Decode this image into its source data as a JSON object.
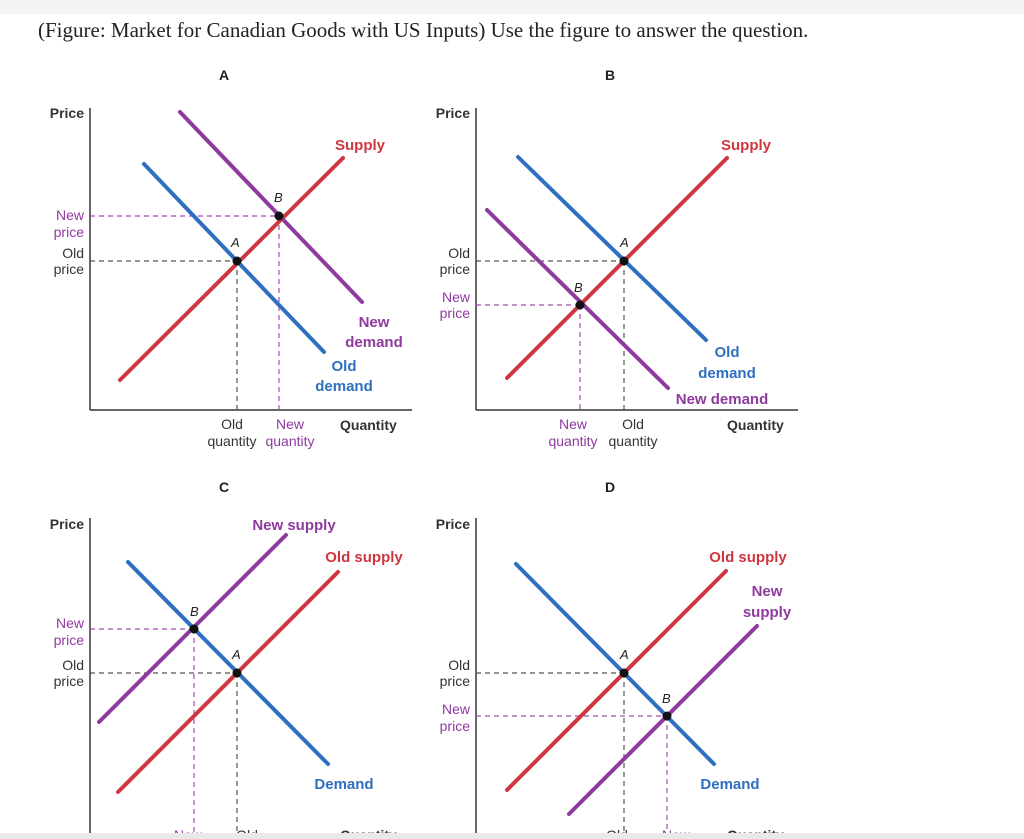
{
  "question": "(Figure: Market for Canadian Goods with US Inputs) Use the figure to answer the question.",
  "colors": {
    "supply": "#d0363f",
    "demand": "#2e6fbf",
    "new_curve": "#8e3a9e",
    "axis": "#333333",
    "guide_old": "#555555",
    "guide_new": "#a24cb0"
  },
  "panels": {
    "A": {
      "letter": "A",
      "price_axis": "Price",
      "quantity_axis": "Quantity",
      "price_labels": {
        "new": [
          "New",
          "price"
        ],
        "old": [
          "Old",
          "price"
        ]
      },
      "quantity_labels": {
        "old": [
          "Old",
          "quantity"
        ],
        "new": [
          "New",
          "quantity"
        ]
      },
      "curves": {
        "supply": "Supply",
        "new_demand": [
          "New",
          "demand"
        ],
        "old_demand": [
          "Old",
          "demand"
        ]
      },
      "points": [
        "A",
        "B"
      ]
    },
    "B": {
      "letter": "B",
      "price_axis": "Price",
      "quantity_axis": "Quantity",
      "price_labels": {
        "old": [
          "Old",
          "price"
        ],
        "new": [
          "New",
          "price"
        ]
      },
      "quantity_labels": {
        "new": [
          "New",
          "quantity"
        ],
        "old": [
          "Old",
          "quantity"
        ]
      },
      "curves": {
        "supply": "Supply",
        "old_demand": [
          "Old",
          "demand"
        ],
        "new_demand": "New demand"
      },
      "points": [
        "A",
        "B"
      ]
    },
    "C": {
      "letter": "C",
      "price_axis": "Price",
      "quantity_axis": "Quantity",
      "price_labels": {
        "new": [
          "New",
          "price"
        ],
        "old": [
          "Old",
          "price"
        ]
      },
      "quantity_labels": {
        "new": "New",
        "old": "Old"
      },
      "curves": {
        "new_supply": "New supply",
        "old_supply": "Old supply",
        "demand": "Demand"
      },
      "points": [
        "A",
        "B"
      ]
    },
    "D": {
      "letter": "D",
      "price_axis": "Price",
      "quantity_axis": "Quantity",
      "price_labels": {
        "old": [
          "Old",
          "price"
        ],
        "new": [
          "New",
          "price"
        ]
      },
      "quantity_labels": {
        "old": "Old",
        "new": "New"
      },
      "curves": {
        "old_supply": "Old supply",
        "new_supply": [
          "New",
          "supply"
        ],
        "demand": "Demand"
      },
      "points": [
        "A",
        "B"
      ]
    }
  }
}
